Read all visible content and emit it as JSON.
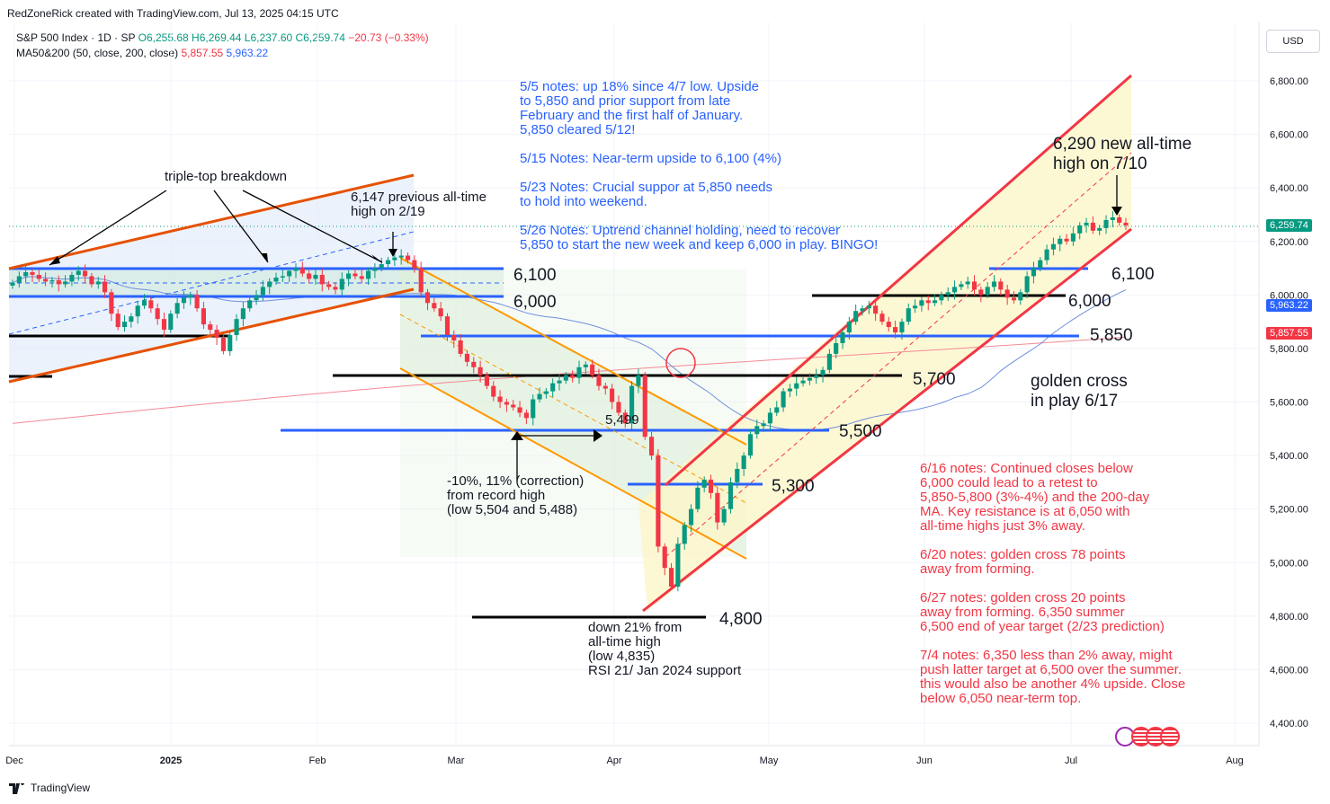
{
  "header": {
    "credit": "RedZoneRick created with TradingView.com, Jul 13, 2025 04:15 UTC",
    "symbol": "S&P 500 Index · 1D · SP",
    "open": "O6,255.68",
    "high": "H6,269.44",
    "low": "L6,237.60",
    "close": "C6,259.74",
    "change": "−20.73 (−0.33%)",
    "ma_label": "MA50&200 (50, close, 200, close)",
    "ma50_value": "5,857.55",
    "ma200_value": "5,963.22"
  },
  "currency_button": "USD",
  "brand": "TradingView",
  "colors": {
    "up": "#089981",
    "down": "#f23645",
    "blue": "#2962ff",
    "orange": "#e65100",
    "channel_orange": "#ff9800",
    "red_channel": "#f23645"
  },
  "chart_data": {
    "type": "candlestick",
    "y_axis_ticks": [
      "6,800.00",
      "6,600.00",
      "6,400.00",
      "6,200.00",
      "6,000.00",
      "5,800.00",
      "5,600.00",
      "5,400.00",
      "5,200.00",
      "5,000.00",
      "4,800.00",
      "4,600.00",
      "4,400.00"
    ],
    "x_axis_ticks": [
      "Dec",
      "2025",
      "Feb",
      "Mar",
      "Apr",
      "May",
      "Jun",
      "Jul",
      "Aug"
    ],
    "last_price_label": "6,259.74",
    "ma200_label": "5,963.22",
    "ma50_label": "5,857.55",
    "price_range": [
      4350,
      6870
    ],
    "close_path": [
      6045,
      6070,
      6085,
      6075,
      6060,
      6050,
      6055,
      6040,
      6050,
      6075,
      6090,
      6070,
      6040,
      6050,
      6010,
      5930,
      5880,
      5900,
      5920,
      5960,
      5980,
      5950,
      5910,
      5870,
      5930,
      5970,
      5990,
      6000,
      5950,
      5890,
      5870,
      5840,
      5790,
      5850,
      5910,
      5950,
      5980,
      6000,
      6030,
      6050,
      6065,
      6070,
      6090,
      6100,
      6080,
      6060,
      6075,
      6040,
      6030,
      6020,
      6060,
      6080,
      6070,
      6060,
      6090,
      6100,
      6115,
      6130,
      6140,
      6147,
      6130,
      6100,
      6010,
      5970,
      5950,
      5920,
      5850,
      5830,
      5780,
      5750,
      5730,
      5700,
      5660,
      5620,
      5600,
      5590,
      5580,
      5560,
      5540,
      5610,
      5630,
      5640,
      5670,
      5680,
      5700,
      5690,
      5730,
      5740,
      5700,
      5660,
      5650,
      5600,
      5560,
      5520,
      5660,
      5700,
      5470,
      5400,
      5060,
      4980,
      4910,
      5070,
      5140,
      5200,
      5280,
      5310,
      5260,
      5150,
      5200,
      5300,
      5350,
      5400,
      5480,
      5510,
      5520,
      5560,
      5580,
      5640,
      5650,
      5670,
      5680,
      5690,
      5700,
      5720,
      5780,
      5820,
      5860,
      5900,
      5940,
      5950,
      5960,
      5930,
      5900,
      5880,
      5860,
      5900,
      5950,
      5960,
      5980,
      5970,
      5980,
      6000,
      6010,
      6030,
      6040,
      6050,
      6020,
      6000,
      6030,
      6050,
      6020,
      5990,
      5980,
      6010,
      6070,
      6100,
      6130,
      6170,
      6190,
      6210,
      6200,
      6230,
      6260,
      6270,
      6240,
      6250,
      6280,
      6290,
      6270,
      6259.74
    ]
  },
  "levels": {
    "l6100": "6,100",
    "l6000": "6,000",
    "l6100b": "6,100",
    "l6000b": "6,000",
    "l5850": "5,850",
    "l5700": "5,700",
    "l5500": "5,500",
    "l5300": "5,300",
    "l4800": "4,800",
    "l5499": "5,499"
  },
  "annotations": {
    "triple_top": "triple-top breakdown",
    "prev_ath": "6,147 previous all-time\nhigh on 2/19",
    "blue_notes": "5/5 notes: up 18% since 4/7 low. Upside\nto 5,850 and prior support from late\nFebruary and the first half of January.\n5,850 cleared 5/12!\n\n5/15 Notes: Near-term upside to 6,100 (4%)\n\n5/23 Notes: Crucial suppor at 5,850 needs\nto hold into weekend.\n\n5/26 Notes: Uptrend channel holding, need to recover\n5,850 to start the new week and keep 6,000 in play. BINGO!",
    "new_ath": "6,290 new all-time\nhigh on 7/10",
    "golden_cross": "golden cross\nin play 6/17",
    "correction": "-10%, 11% (correction)\nfrom record high\n(low 5,504 and 5,488)",
    "down21": "down 21% from\nall-time high\n(low 4,835)\nRSI 21/ Jan 2024 support",
    "red_notes": "6/16 notes: Continued closes below\n6,000 could lead to a retest to\n5,850-5,800 (3%-4%) and the 200-day\nMA. Key resistance is at 6,050 with\nall-time highs just 3% away.\n\n6/20 notes: golden cross 78 points\naway from forming.\n\n6/27 notes: golden cross 20 points\naway from forming. 6,350 summer\n6,500 end of year target (2/23 prediction)\n\n7/4 notes: 6,350 less than 2% away, might\npush latter target at 6,500 over the summer.\nthis would also be another 4% upside. Close\nbelow 6,050 near-term top."
  }
}
